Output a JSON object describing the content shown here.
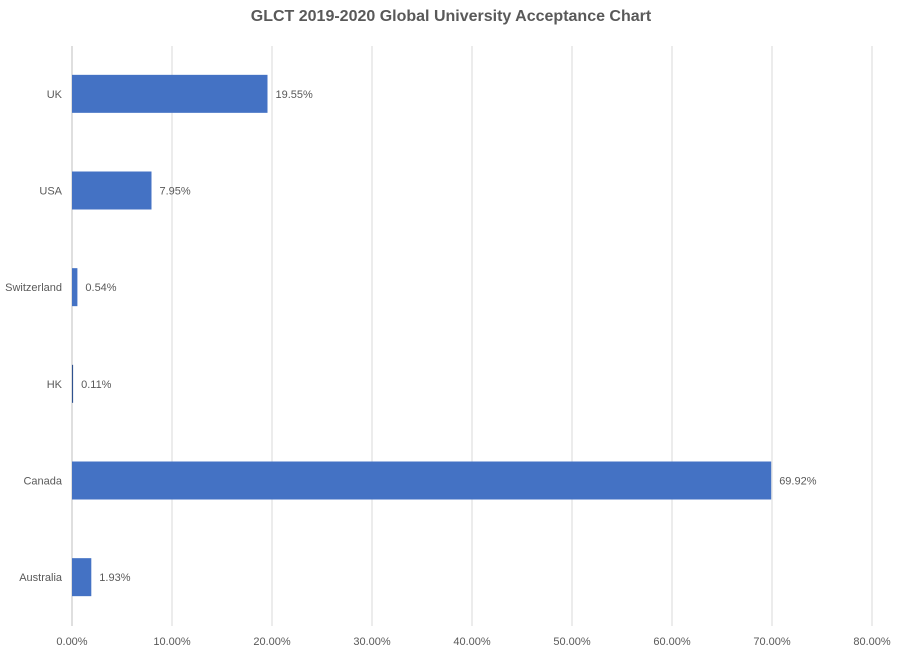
{
  "chart_data": {
    "type": "bar",
    "orientation": "horizontal",
    "title": "GLCT 2019-2020 Global University Acceptance Chart",
    "categories": [
      "UK",
      "USA",
      "Switzerland",
      "HK",
      "Canada",
      "Australia"
    ],
    "values": [
      19.55,
      7.95,
      0.54,
      0.11,
      69.92,
      1.93
    ],
    "data_labels": [
      "19.55%",
      "7.95%",
      "0.54%",
      "0.11%",
      "69.92%",
      "1.93%"
    ],
    "xlabel": "",
    "ylabel": "",
    "xlim": [
      0,
      80
    ],
    "x_ticks": [
      "0.00%",
      "10.00%",
      "20.00%",
      "30.00%",
      "40.00%",
      "50.00%",
      "60.00%",
      "70.00%",
      "80.00%"
    ],
    "grid": true,
    "bar_color": "#4472C4",
    "grid_color": "#D9D9D9"
  }
}
